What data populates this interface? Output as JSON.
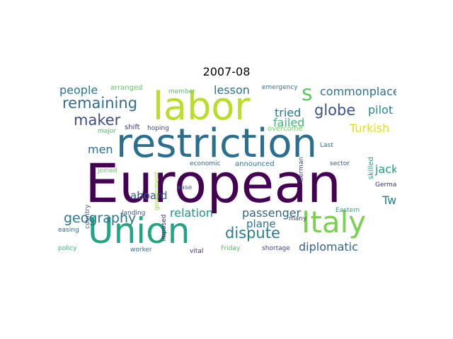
{
  "title": "2007-08",
  "words": [
    {
      "text": "European",
      "color": "#440154"
    },
    {
      "text": "restriction",
      "color": "#2a6f8e"
    },
    {
      "text": "labor",
      "color": "#b8de29"
    },
    {
      "text": "Union",
      "color": "#21a685"
    },
    {
      "text": "Italy",
      "color": "#7ad151"
    },
    {
      "text": "s",
      "color": "#5ec962"
    },
    {
      "text": "commonplace",
      "color": "#2c718e"
    },
    {
      "text": "remaining",
      "color": "#2f6b8e"
    },
    {
      "text": "globe",
      "color": "#3b528b"
    },
    {
      "text": "maker",
      "color": "#3e4a89"
    },
    {
      "text": "geography",
      "color": "#2a788e"
    },
    {
      "text": "people",
      "color": "#2a788e"
    },
    {
      "text": "lesson",
      "color": "#2d708e"
    },
    {
      "text": "tried",
      "color": "#2b758e"
    },
    {
      "text": "pilot",
      "color": "#25858e"
    },
    {
      "text": "failed",
      "color": "#3aba76"
    },
    {
      "text": "Turkish",
      "color": "#dde318"
    },
    {
      "text": "men",
      "color": "#2e6e8e"
    },
    {
      "text": "aboard",
      "color": "#3a548c"
    },
    {
      "text": "jack",
      "color": "#1f9e89"
    },
    {
      "text": "dispute",
      "color": "#287c8e"
    },
    {
      "text": "relation",
      "color": "#21918c"
    },
    {
      "text": "passenger",
      "color": "#32658e"
    },
    {
      "text": "plane",
      "color": "#2c728e"
    },
    {
      "text": "Two",
      "color": "#26828e"
    },
    {
      "text": "diplomatic",
      "color": "#33638d"
    },
    {
      "text": "arranged",
      "color": "#5ec962"
    },
    {
      "text": "member",
      "color": "#54c568"
    },
    {
      "text": "emergency",
      "color": "#2a788e"
    },
    {
      "text": "major",
      "color": "#4ac16d"
    },
    {
      "text": "shift",
      "color": "#46327e"
    },
    {
      "text": "hoping",
      "color": "#3e4a89"
    },
    {
      "text": "overcome",
      "color": "#6ccd5a"
    },
    {
      "text": "Last",
      "color": "#2c718e"
    },
    {
      "text": "German",
      "color": "#3f4889"
    },
    {
      "text": "skilled",
      "color": "#1fa188"
    },
    {
      "text": "sector",
      "color": "#3b528b"
    },
    {
      "text": "Germany",
      "color": "#472d7b"
    },
    {
      "text": "Eastern",
      "color": "#22a884"
    },
    {
      "text": "economic",
      "color": "#31688e"
    },
    {
      "text": "announced",
      "color": "#2a788e"
    },
    {
      "text": "joined",
      "color": "#5ec962"
    },
    {
      "text": "government",
      "color": "#a0da39"
    },
    {
      "text": "country",
      "color": "#3e4c8a"
    },
    {
      "text": "ease",
      "color": "#2c728e"
    },
    {
      "text": "landing",
      "color": "#3b528b"
    },
    {
      "text": "imposed",
      "color": "#482576"
    },
    {
      "text": "many",
      "color": "#3e4989"
    },
    {
      "text": "easing",
      "color": "#2f6c8e"
    },
    {
      "text": "policy",
      "color": "#35b779"
    },
    {
      "text": "worker",
      "color": "#2c728e"
    },
    {
      "text": "vital",
      "color": "#472c7a"
    },
    {
      "text": "Friday",
      "color": "#4ac16d"
    },
    {
      "text": "shortage",
      "color": "#414487"
    }
  ]
}
